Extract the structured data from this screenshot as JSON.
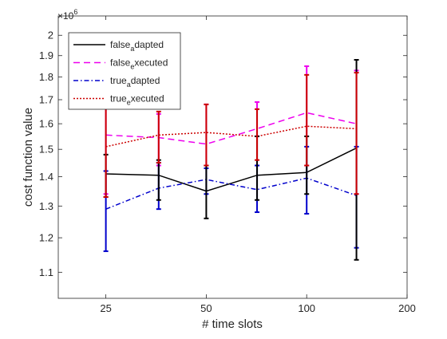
{
  "chart_data": {
    "type": "line",
    "title": "",
    "xlabel": "# time slots",
    "ylabel": "cost function value",
    "x_scale": "log",
    "y_scale": "log",
    "y_multiplier_label": "×10",
    "y_multiplier_exponent": "6",
    "xlim": [
      18,
      200
    ],
    "ylim": [
      1.03,
      2.1
    ],
    "x_ticks": [
      25,
      50,
      100,
      200
    ],
    "x_tick_labels": [
      "25",
      "50",
      "100",
      "200"
    ],
    "y_ticks": [
      1.1,
      1.2,
      1.3,
      1.4,
      1.5,
      1.6,
      1.7,
      1.8,
      1.9,
      2.0
    ],
    "y_tick_labels": [
      "1.1",
      "1.2",
      "1.3",
      "1.4",
      "1.5",
      "1.6",
      "1.7",
      "1.8",
      "1.9",
      "2"
    ],
    "grid": false,
    "legend_position": "top-left",
    "x": [
      25,
      36,
      50,
      71,
      100,
      141
    ],
    "series": [
      {
        "name": "false_adapted",
        "legend_main": "false",
        "legend_sub": "a",
        "legend_rest": "dapted",
        "color": "#000000",
        "dash": "solid",
        "values": [
          1.41,
          1.405,
          1.35,
          1.405,
          1.415,
          1.505
        ],
        "err_low": [
          1.33,
          1.32,
          1.26,
          1.32,
          1.34,
          1.135
        ],
        "err_high": [
          1.48,
          1.46,
          1.44,
          1.55,
          1.55,
          1.88
        ]
      },
      {
        "name": "false_executed",
        "legend_main": "false",
        "legend_sub": "e",
        "legend_rest": "xecuted",
        "color": "#ee00ee",
        "dash": "8,5",
        "values": [
          1.555,
          1.545,
          1.52,
          1.58,
          1.645,
          1.6
        ],
        "err_low": [
          1.34,
          1.44,
          1.44,
          1.44,
          1.44,
          1.34
        ],
        "err_high": [
          1.71,
          1.64,
          1.68,
          1.69,
          1.85,
          1.83
        ]
      },
      {
        "name": "true_adapted",
        "legend_main": "true",
        "legend_sub": "a",
        "legend_rest": "dapted",
        "color": "#0000cc",
        "dash": "6,3,1.5,3",
        "values": [
          1.29,
          1.36,
          1.39,
          1.355,
          1.395,
          1.335
        ],
        "err_low": [
          1.16,
          1.29,
          1.34,
          1.28,
          1.275,
          1.17
        ],
        "err_high": [
          1.42,
          1.45,
          1.43,
          1.44,
          1.51,
          1.51
        ]
      },
      {
        "name": "true_executed",
        "legend_main": "true",
        "legend_sub": "e",
        "legend_rest": "xecuted",
        "color": "#cc0000",
        "dash": "2,2",
        "values": [
          1.51,
          1.555,
          1.565,
          1.55,
          1.59,
          1.58
        ],
        "err_low": [
          1.33,
          1.45,
          1.44,
          1.46,
          1.44,
          1.34
        ],
        "err_high": [
          1.7,
          1.65,
          1.68,
          1.66,
          1.81,
          1.82
        ]
      }
    ]
  }
}
